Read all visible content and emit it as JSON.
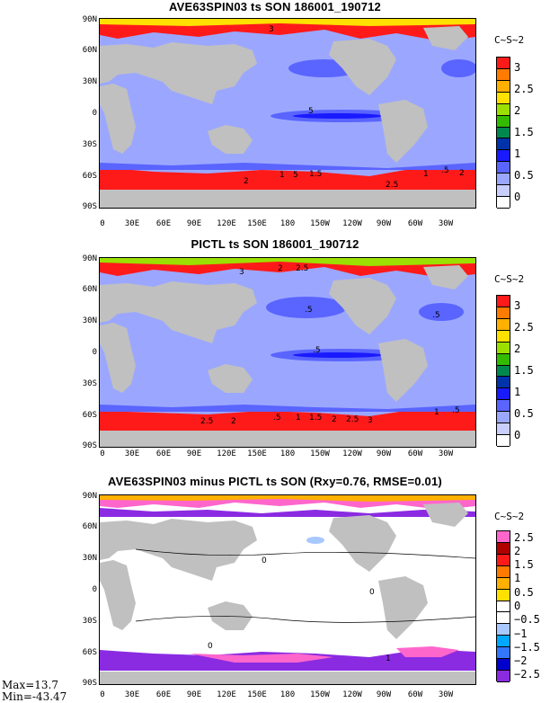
{
  "units": "C~S~2",
  "panels": [
    {
      "title": "AVE63SPIN03 ts SON 186001_190712",
      "yticks": [
        "90N",
        "60N",
        "30N",
        "0",
        "30S",
        "60S",
        "90S"
      ],
      "xticks": [
        "0",
        "30E",
        "60E",
        "90E",
        "120E",
        "150E",
        "180",
        "150W",
        "120W",
        "90W",
        "60W",
        "30W"
      ],
      "colorbar": {
        "colors": [
          "#ff1a1a",
          "#ff7a00",
          "#ffb000",
          "#ffe000",
          "#9be000",
          "#33bb00",
          "#00884f",
          "#0033aa",
          "#1a1aff",
          "#5a64ff",
          "#9ba7ff",
          "#c8cfff",
          "#ffffff"
        ],
        "labels": [
          "3",
          "2.5",
          "2",
          "1.5",
          "1",
          "0.5",
          "0"
        ]
      },
      "contour_labels": [
        "3",
        "5",
        "1",
        "5",
        "1.5",
        "2",
        "2.5",
        "1",
        ".5",
        "2"
      ]
    },
    {
      "title": "PICTL ts SON 186001_190712",
      "yticks": [
        "90N",
        "60N",
        "30N",
        "0",
        "30S",
        "60S",
        "90S"
      ],
      "xticks": [
        "0",
        "30E",
        "60E",
        "90E",
        "120E",
        "150E",
        "180",
        "150W",
        "120W",
        "90W",
        "60W",
        "30W"
      ],
      "colorbar": {
        "colors": [
          "#ff1a1a",
          "#ff7a00",
          "#ffb000",
          "#ffe000",
          "#9be000",
          "#33bb00",
          "#00884f",
          "#0033aa",
          "#1a1aff",
          "#5a64ff",
          "#9ba7ff",
          "#c8cfff",
          "#ffffff"
        ],
        "labels": [
          "3",
          "2.5",
          "2",
          "1.5",
          "1",
          "0.5",
          "0"
        ]
      },
      "contour_labels": [
        "3",
        "2",
        "2.5",
        ".5",
        ".5",
        ".5",
        "2.5",
        "2",
        ".5",
        "1",
        "1.5",
        "2",
        "2.5",
        "3",
        "1",
        ".5"
      ]
    },
    {
      "title": "AVE63SPIN03 minus PICTL ts SON (Rxy=0.76, RMSE=0.01)",
      "yticks": [
        "90N",
        "60N",
        "30N",
        "0",
        "30S",
        "60S",
        "90S"
      ],
      "xticks": [
        "0",
        "30E",
        "60E",
        "90E",
        "120E",
        "150E",
        "180",
        "150W",
        "120W",
        "90W",
        "60W",
        "30W"
      ],
      "colorbar": {
        "colors": [
          "#ff66cc",
          "#b00000",
          "#ff1a1a",
          "#ff7a00",
          "#ffb000",
          "#ffe000",
          "#ffffff",
          "#ffffff",
          "#a8c8ff",
          "#00a8ff",
          "#3377ff",
          "#0000cc",
          "#8a2be2"
        ],
        "labels": [
          "2.5",
          "2",
          "1.5",
          "1",
          "0.5",
          "0",
          "−0.5",
          "−1",
          "−1.5",
          "−2",
          "−2.5"
        ]
      },
      "contour_labels": [
        "0",
        "0",
        "0",
        "1"
      ],
      "stats": {
        "max": "Max=13.7",
        "min": "Min=-43.47"
      }
    }
  ]
}
